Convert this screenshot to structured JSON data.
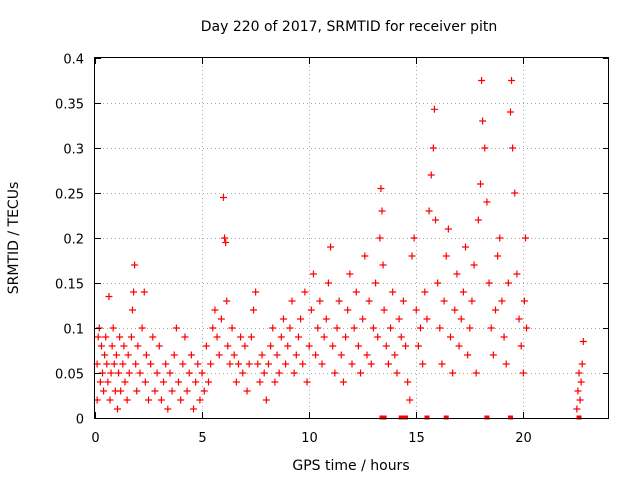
{
  "chart_data": {
    "type": "scatter",
    "title": "Day 220 of 2017, SRMTID for receiver pitn",
    "xlabel": "GPS time / hours",
    "ylabel": "SRMTID / TECUs",
    "xlim": [
      0,
      24
    ],
    "ylim": [
      0,
      0.4
    ],
    "xticks": [
      0,
      5,
      10,
      15,
      20
    ],
    "yticks": [
      0,
      0.05,
      0.1,
      0.15,
      0.2,
      0.25,
      0.3,
      0.35,
      0.4
    ],
    "xtick_labels": [
      "0",
      "5",
      "10",
      "15",
      "20"
    ],
    "ytick_labels": [
      "0",
      "0.05",
      "0.1",
      "0.15",
      "0.2",
      "0.25",
      "0.3",
      "0.35",
      "0.4"
    ],
    "grid": true,
    "legend": "none",
    "marker": "plus",
    "color": "#ff0000",
    "series": [
      {
        "marker": "plus",
        "points": [
          [
            0.1,
            0.02
          ],
          [
            0.1,
            0.06
          ],
          [
            0.15,
            0.09
          ],
          [
            0.2,
            0.1
          ],
          [
            0.25,
            0.04
          ],
          [
            0.3,
            0.08
          ],
          [
            0.35,
            0.05
          ],
          [
            0.4,
            0.03
          ],
          [
            0.45,
            0.07
          ],
          [
            0.5,
            0.09
          ],
          [
            0.55,
            0.06
          ],
          [
            0.6,
            0.04
          ],
          [
            0.65,
            0.135
          ],
          [
            0.7,
            0.02
          ],
          [
            0.75,
            0.05
          ],
          [
            0.8,
            0.08
          ],
          [
            0.85,
            0.1
          ],
          [
            0.9,
            0.06
          ],
          [
            0.95,
            0.03
          ],
          [
            1.0,
            0.07
          ],
          [
            1.05,
            0.01
          ],
          [
            1.1,
            0.05
          ],
          [
            1.15,
            0.09
          ],
          [
            1.2,
            0.03
          ],
          [
            1.3,
            0.06
          ],
          [
            1.35,
            0.08
          ],
          [
            1.4,
            0.04
          ],
          [
            1.5,
            0.02
          ],
          [
            1.55,
            0.07
          ],
          [
            1.6,
            0.05
          ],
          [
            1.7,
            0.09
          ],
          [
            1.75,
            0.12
          ],
          [
            1.8,
            0.14
          ],
          [
            1.85,
            0.17
          ],
          [
            1.9,
            0.06
          ],
          [
            1.95,
            0.03
          ],
          [
            2.0,
            0.08
          ],
          [
            2.1,
            0.05
          ],
          [
            2.2,
            0.1
          ],
          [
            2.3,
            0.14
          ],
          [
            2.35,
            0.04
          ],
          [
            2.4,
            0.07
          ],
          [
            2.5,
            0.02
          ],
          [
            2.6,
            0.06
          ],
          [
            2.7,
            0.09
          ],
          [
            2.8,
            0.03
          ],
          [
            2.9,
            0.05
          ],
          [
            3.0,
            0.08
          ],
          [
            3.1,
            0.02
          ],
          [
            3.2,
            0.04
          ],
          [
            3.3,
            0.06
          ],
          [
            3.4,
            0.01
          ],
          [
            3.5,
            0.05
          ],
          [
            3.6,
            0.03
          ],
          [
            3.7,
            0.07
          ],
          [
            3.8,
            0.1
          ],
          [
            3.9,
            0.04
          ],
          [
            4.0,
            0.02
          ],
          [
            4.1,
            0.06
          ],
          [
            4.2,
            0.09
          ],
          [
            4.3,
            0.03
          ],
          [
            4.4,
            0.05
          ],
          [
            4.5,
            0.07
          ],
          [
            4.6,
            0.01
          ],
          [
            4.7,
            0.04
          ],
          [
            4.8,
            0.06
          ],
          [
            4.9,
            0.02
          ],
          [
            5.0,
            0.05
          ],
          [
            5.1,
            0.03
          ],
          [
            5.2,
            0.08
          ],
          [
            5.3,
            0.04
          ],
          [
            5.4,
            0.06
          ],
          [
            5.5,
            0.1
          ],
          [
            5.6,
            0.12
          ],
          [
            5.7,
            0.09
          ],
          [
            5.8,
            0.07
          ],
          [
            5.9,
            0.11
          ],
          [
            6.0,
            0.245
          ],
          [
            6.05,
            0.2
          ],
          [
            6.1,
            0.195
          ],
          [
            6.15,
            0.13
          ],
          [
            6.2,
            0.08
          ],
          [
            6.3,
            0.06
          ],
          [
            6.4,
            0.1
          ],
          [
            6.5,
            0.07
          ],
          [
            6.6,
            0.04
          ],
          [
            6.7,
            0.06
          ],
          [
            6.8,
            0.09
          ],
          [
            6.9,
            0.05
          ],
          [
            7.0,
            0.08
          ],
          [
            7.1,
            0.03
          ],
          [
            7.2,
            0.06
          ],
          [
            7.3,
            0.09
          ],
          [
            7.4,
            0.12
          ],
          [
            7.5,
            0.14
          ],
          [
            7.6,
            0.06
          ],
          [
            7.7,
            0.04
          ],
          [
            7.8,
            0.07
          ],
          [
            7.9,
            0.05
          ],
          [
            8.0,
            0.02
          ],
          [
            8.1,
            0.06
          ],
          [
            8.2,
            0.08
          ],
          [
            8.3,
            0.1
          ],
          [
            8.4,
            0.04
          ],
          [
            8.5,
            0.07
          ],
          [
            8.6,
            0.05
          ],
          [
            8.7,
            0.09
          ],
          [
            8.8,
            0.11
          ],
          [
            8.9,
            0.06
          ],
          [
            9.0,
            0.08
          ],
          [
            9.1,
            0.1
          ],
          [
            9.2,
            0.13
          ],
          [
            9.3,
            0.05
          ],
          [
            9.4,
            0.07
          ],
          [
            9.5,
            0.09
          ],
          [
            9.6,
            0.11
          ],
          [
            9.7,
            0.06
          ],
          [
            9.8,
            0.14
          ],
          [
            9.9,
            0.04
          ],
          [
            10.0,
            0.08
          ],
          [
            10.1,
            0.12
          ],
          [
            10.2,
            0.16
          ],
          [
            10.3,
            0.07
          ],
          [
            10.4,
            0.1
          ],
          [
            10.5,
            0.13
          ],
          [
            10.6,
            0.06
          ],
          [
            10.7,
            0.09
          ],
          [
            10.8,
            0.11
          ],
          [
            10.9,
            0.15
          ],
          [
            11.0,
            0.19
          ],
          [
            11.1,
            0.08
          ],
          [
            11.2,
            0.05
          ],
          [
            11.3,
            0.1
          ],
          [
            11.4,
            0.13
          ],
          [
            11.5,
            0.07
          ],
          [
            11.6,
            0.04
          ],
          [
            11.7,
            0.09
          ],
          [
            11.8,
            0.12
          ],
          [
            11.9,
            0.16
          ],
          [
            12.0,
            0.06
          ],
          [
            12.1,
            0.1
          ],
          [
            12.2,
            0.14
          ],
          [
            12.3,
            0.08
          ],
          [
            12.4,
            0.05
          ],
          [
            12.5,
            0.11
          ],
          [
            12.6,
            0.18
          ],
          [
            12.7,
            0.07
          ],
          [
            12.8,
            0.13
          ],
          [
            12.9,
            0.06
          ],
          [
            13.0,
            0.1
          ],
          [
            13.1,
            0.15
          ],
          [
            13.2,
            0.09
          ],
          [
            13.3,
            0.2
          ],
          [
            13.35,
            0.255
          ],
          [
            13.4,
            0.23
          ],
          [
            13.45,
            0.17
          ],
          [
            13.5,
            0.12
          ],
          [
            13.6,
            0.08
          ],
          [
            13.7,
            0.06
          ],
          [
            13.8,
            0.1
          ],
          [
            13.9,
            0.14
          ],
          [
            14.0,
            0.07
          ],
          [
            14.1,
            0.05
          ],
          [
            14.2,
            0.11
          ],
          [
            14.3,
            0.09
          ],
          [
            14.4,
            0.13
          ],
          [
            14.5,
            0.08
          ],
          [
            14.6,
            0.04
          ],
          [
            14.7,
            0.02
          ],
          [
            14.8,
            0.18
          ],
          [
            14.9,
            0.2
          ],
          [
            15.0,
            0.12
          ],
          [
            15.1,
            0.08
          ],
          [
            15.2,
            0.1
          ],
          [
            15.3,
            0.06
          ],
          [
            15.4,
            0.14
          ],
          [
            15.5,
            0.11
          ],
          [
            15.6,
            0.23
          ],
          [
            15.7,
            0.27
          ],
          [
            15.8,
            0.3
          ],
          [
            15.85,
            0.343
          ],
          [
            15.9,
            0.22
          ],
          [
            16.0,
            0.15
          ],
          [
            16.1,
            0.1
          ],
          [
            16.2,
            0.06
          ],
          [
            16.3,
            0.13
          ],
          [
            16.4,
            0.18
          ],
          [
            16.5,
            0.21
          ],
          [
            16.6,
            0.09
          ],
          [
            16.7,
            0.05
          ],
          [
            16.8,
            0.12
          ],
          [
            16.9,
            0.16
          ],
          [
            17.0,
            0.08
          ],
          [
            17.1,
            0.11
          ],
          [
            17.2,
            0.14
          ],
          [
            17.3,
            0.19
          ],
          [
            17.4,
            0.07
          ],
          [
            17.5,
            0.1
          ],
          [
            17.6,
            0.13
          ],
          [
            17.7,
            0.17
          ],
          [
            17.8,
            0.05
          ],
          [
            17.9,
            0.22
          ],
          [
            18.0,
            0.26
          ],
          [
            18.05,
            0.375
          ],
          [
            18.1,
            0.33
          ],
          [
            18.2,
            0.3
          ],
          [
            18.3,
            0.24
          ],
          [
            18.4,
            0.15
          ],
          [
            18.5,
            0.1
          ],
          [
            18.6,
            0.07
          ],
          [
            18.7,
            0.12
          ],
          [
            18.8,
            0.18
          ],
          [
            18.9,
            0.2
          ],
          [
            19.0,
            0.13
          ],
          [
            19.1,
            0.09
          ],
          [
            19.2,
            0.06
          ],
          [
            19.3,
            0.15
          ],
          [
            19.4,
            0.34
          ],
          [
            19.45,
            0.375
          ],
          [
            19.5,
            0.3
          ],
          [
            19.6,
            0.25
          ],
          [
            19.7,
            0.16
          ],
          [
            19.8,
            0.11
          ],
          [
            19.9,
            0.08
          ],
          [
            20.0,
            0.05
          ],
          [
            20.05,
            0.13
          ],
          [
            20.1,
            0.2
          ],
          [
            20.15,
            0.1
          ],
          [
            22.5,
            0.01
          ],
          [
            22.55,
            0.03
          ],
          [
            22.6,
            0.05
          ],
          [
            22.65,
            0.02
          ],
          [
            22.7,
            0.04
          ],
          [
            22.75,
            0.06
          ],
          [
            22.8,
            0.085
          ],
          [
            13.4,
            0.0
          ],
          [
            13.5,
            0.0
          ],
          [
            14.3,
            0.0
          ],
          [
            14.5,
            0.0
          ],
          [
            15.5,
            0.0
          ],
          [
            16.4,
            0.0
          ],
          [
            18.3,
            0.0
          ],
          [
            19.4,
            0.0
          ],
          [
            22.6,
            0.0
          ]
        ]
      }
    ]
  }
}
